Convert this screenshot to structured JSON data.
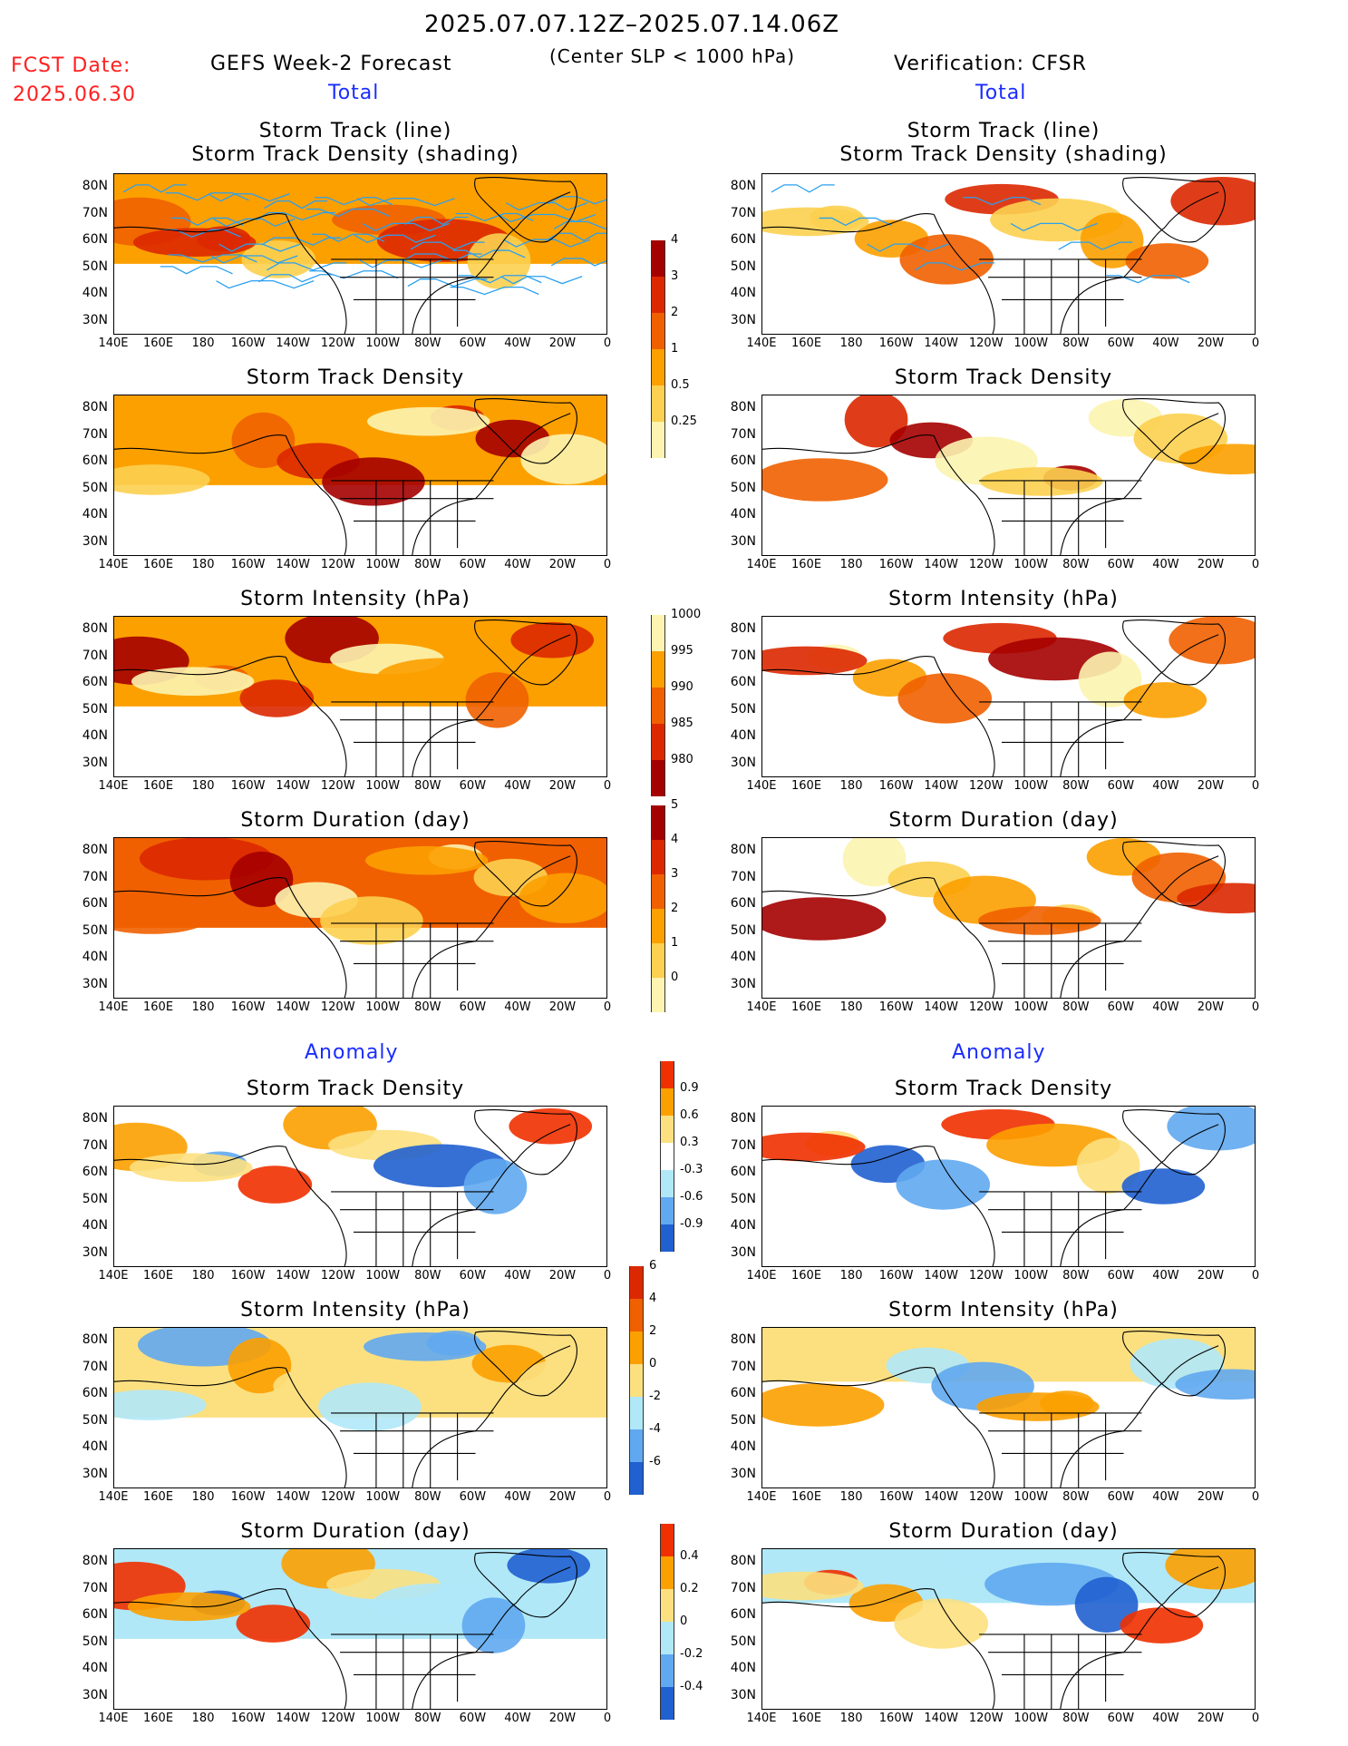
{
  "header": {
    "date_range": "2025.07.07.12Z–2025.07.14.06Z",
    "criteria": "(Center SLP < 1000 hPa)",
    "fcst_label": "FCST Date:",
    "fcst_date": "2025.06.30",
    "left_title": "GEFS Week-2 Forecast",
    "right_title": "Verification: CFSR",
    "total_left": "Total",
    "total_right": "Total",
    "anomaly_left": "Anomaly",
    "anomaly_right": "Anomaly"
  },
  "axes": {
    "lat_labels": [
      "80N",
      "70N",
      "60N",
      "50N",
      "40N",
      "30N"
    ],
    "lon_labels": [
      "140E",
      "160E",
      "180",
      "160W",
      "140W",
      "120W",
      "100W",
      "80W",
      "60W",
      "40W",
      "20W",
      "0"
    ]
  },
  "panels": {
    "track_line_1": "Storm Track (line)",
    "track_line_2": "Storm Track Density (shading)",
    "track_density": "Storm Track Density",
    "intensity": "Storm Intensity (hPa)",
    "duration": "Storm Duration (day)",
    "anom_density": "Storm Track Density",
    "anom_intensity": "Storm Intensity (hPa)",
    "anom_duration": "Storm Duration (day)"
  },
  "colorbars": {
    "density": {
      "labels": [
        "4",
        "3",
        "2",
        "1",
        "0.5",
        "0.25"
      ],
      "colors": [
        "#a50000",
        "#dc2800",
        "#f06000",
        "#fca000",
        "#fcd050",
        "#fcf4b0"
      ]
    },
    "intensity": {
      "labels": [
        "1000",
        "995",
        "990",
        "985",
        "980"
      ],
      "colors": [
        "#fcf4b0",
        "#fca000",
        "#f06000",
        "#dc2800",
        "#a50000"
      ]
    },
    "duration": {
      "labels": [
        "5",
        "4",
        "3",
        "2",
        "1",
        "0"
      ],
      "colors": [
        "#a50000",
        "#dc2800",
        "#f06000",
        "#fca000",
        "#fcd050",
        "#fcf4b0"
      ]
    },
    "anom_density": {
      "labels": [
        "0.9",
        "0.6",
        "0.3",
        "-0.3",
        "-0.6",
        "-0.9"
      ],
      "colors": [
        "#f03000",
        "#fca000",
        "#fce080",
        "#ffffff",
        "#b0e8f8",
        "#60a8f0",
        "#2060d0"
      ]
    },
    "anom_intensity": {
      "labels": [
        "6",
        "4",
        "2",
        "0",
        "-2",
        "-4",
        "-6"
      ],
      "colors": [
        "#dc2800",
        "#f06000",
        "#fca000",
        "#fce080",
        "#b0e8f8",
        "#60a8f0",
        "#2060d0"
      ]
    },
    "anom_duration": {
      "labels": [
        "0.4",
        "0.2",
        "0",
        "-0.2",
        "-0.4"
      ],
      "colors": [
        "#f03000",
        "#fca000",
        "#fce080",
        "#b0e8f8",
        "#60a8f0",
        "#2060d0"
      ]
    }
  }
}
